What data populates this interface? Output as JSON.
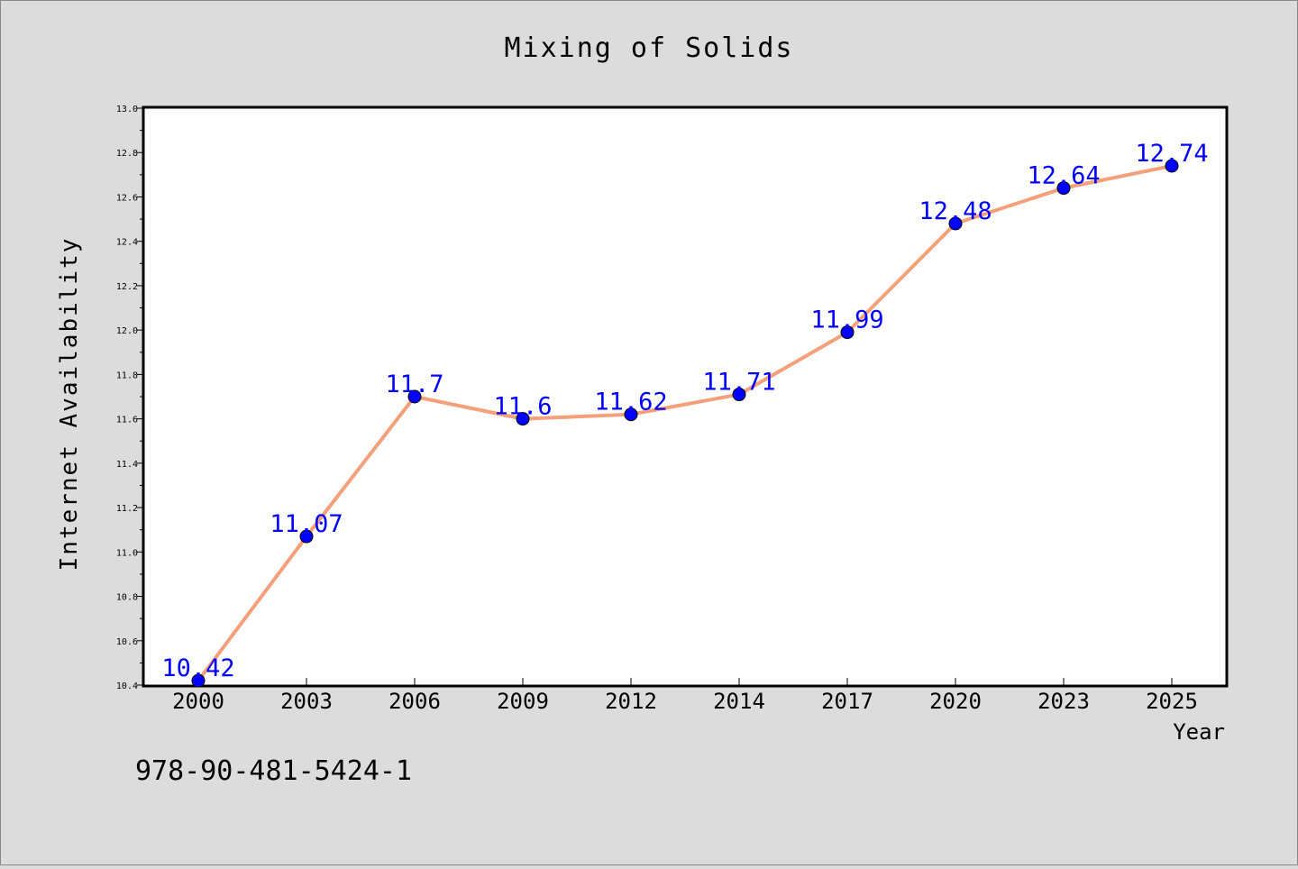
{
  "chart_data": {
    "type": "line",
    "title": "Mixing of Solids",
    "xlabel": "Year",
    "ylabel": "Internet Availability",
    "categories": [
      "2000",
      "2003",
      "2006",
      "2009",
      "2012",
      "2014",
      "2017",
      "2020",
      "2023",
      "2025"
    ],
    "series": [
      {
        "values": [
          10.42,
          11.07,
          11.7,
          11.6,
          11.62,
          11.71,
          11.99,
          12.48,
          12.64,
          12.74
        ],
        "labels": [
          "10.42",
          "11.07",
          "11.7",
          "11.6",
          "11.62",
          "11.71",
          "11.99",
          "12.48",
          "12.64",
          "12.74"
        ]
      }
    ],
    "ylim": [
      10.4,
      13.0
    ],
    "yticks": [
      "10.4",
      "10.6",
      "10.8",
      "11.0",
      "11.2",
      "11.4",
      "11.6",
      "11.8",
      "12.0",
      "12.2",
      "12.4",
      "12.6",
      "12.8",
      "13.0"
    ],
    "grid": false,
    "legend": "none",
    "annotation": "978-90-481-5424-1",
    "colors": {
      "background": "#dcdcdc",
      "plot_area": "#ffffff",
      "line": "#f4a07a",
      "marker": "#0000ff",
      "data_label": "#0000ff",
      "axis": "#000000"
    }
  }
}
